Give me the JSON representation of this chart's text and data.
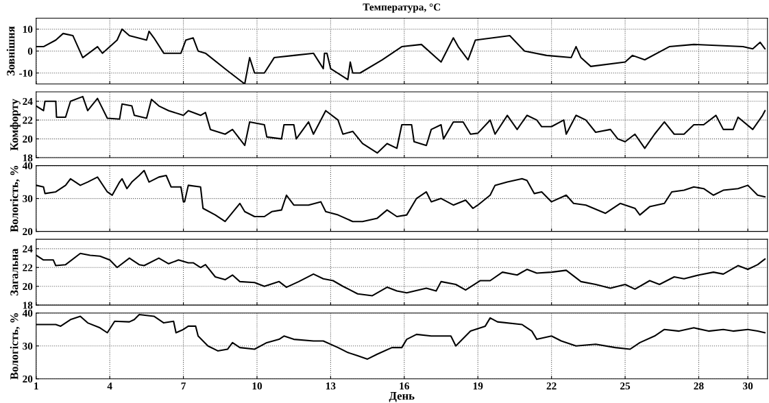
{
  "chart_data": [
    {
      "type": "line",
      "title": "Температура, °C",
      "ylabel": "Зовнішня",
      "xlim": [
        1,
        30.8
      ],
      "xticks": [
        1,
        4,
        7,
        10,
        13,
        16,
        19,
        22,
        25,
        28,
        30
      ],
      "ylim": [
        -15,
        15
      ],
      "yticks": [
        -10,
        0,
        10
      ],
      "grid": true,
      "tick_labels": "y",
      "line_style": "solid",
      "series": [
        {
          "color": "#000000",
          "x": [
            1.0,
            1.3,
            1.8,
            2.1,
            2.5,
            2.9,
            3.5,
            3.7,
            4.3,
            4.5,
            4.8,
            5.5,
            5.6,
            5.8,
            6.2,
            6.9,
            7.1,
            7.4,
            7.6,
            7.9,
            8.8,
            9.5,
            9.7,
            9.9,
            10.3,
            10.7,
            11.5,
            12.3,
            12.7,
            12.75,
            12.85,
            13.0,
            13.7,
            13.8,
            13.9,
            14.2,
            15.1,
            15.9,
            16.7,
            17.5,
            18.0,
            18.2,
            18.6,
            18.9,
            20.3,
            20.9,
            21.8,
            22.8,
            23.0,
            23.2,
            23.6,
            25.0,
            25.3,
            25.8,
            26.8,
            27.8,
            29.8,
            30.2,
            30.5,
            30.7
          ],
          "values": [
            2,
            2,
            5,
            8,
            7,
            -3,
            2,
            -1,
            5,
            10,
            7,
            5,
            9,
            6,
            -1,
            -1,
            5,
            6,
            0,
            -1,
            -9,
            -15,
            -3,
            -10,
            -10,
            -3,
            -2,
            -1,
            -8,
            -1,
            -1,
            -8,
            -13,
            -5,
            -10,
            -10,
            -4,
            2,
            3,
            -5,
            6,
            2,
            -4,
            5,
            7,
            0,
            -2,
            -3,
            2,
            -3,
            -7,
            -5,
            -2,
            -4,
            2,
            3,
            2,
            1,
            4,
            1
          ]
        }
      ]
    },
    {
      "type": "line",
      "ylabel": "Комфорту",
      "xlim": [
        1,
        30.8
      ],
      "xticks": [
        1,
        4,
        7,
        10,
        13,
        16,
        19,
        22,
        25,
        28,
        30
      ],
      "ylim": [
        18,
        25
      ],
      "yticks": [
        18,
        20,
        22,
        24
      ],
      "grid": true,
      "tick_labels": "y",
      "line_style": "solid",
      "series": [
        {
          "color": "#000000",
          "x": [
            1.0,
            1.3,
            1.36,
            1.8,
            1.83,
            2.2,
            2.4,
            2.9,
            3.1,
            3.5,
            3.9,
            4.4,
            4.5,
            4.9,
            5.0,
            5.5,
            5.7,
            6.0,
            6.4,
            7.0,
            7.2,
            7.7,
            7.9,
            8.1,
            8.7,
            9.0,
            9.5,
            9.7,
            10.3,
            10.4,
            11.0,
            11.1,
            11.5,
            11.6,
            12.1,
            12.3,
            12.8,
            13.3,
            13.5,
            13.9,
            14.3,
            14.9,
            15.3,
            15.7,
            15.9,
            16.3,
            16.4,
            16.9,
            17.1,
            17.5,
            17.6,
            18.0,
            18.4,
            18.7,
            19.0,
            19.5,
            19.7,
            20.2,
            20.6,
            21.0,
            21.4,
            21.6,
            22.0,
            22.5,
            22.6,
            23.0,
            23.4,
            23.8,
            24.4,
            24.7,
            25.0,
            25.4,
            25.8,
            26.2,
            26.6,
            27.0,
            27.4,
            27.8,
            28.2,
            28.7,
            29.0,
            29.4,
            29.6,
            30.2,
            30.6,
            30.7
          ],
          "values": [
            23.5,
            23,
            24,
            24,
            22.3,
            22.3,
            24,
            24.5,
            23,
            24.3,
            22.2,
            22.1,
            23.7,
            23.5,
            22.5,
            22.2,
            24.2,
            23.5,
            23,
            22.5,
            23,
            22.5,
            22.8,
            21,
            20.5,
            21,
            19.3,
            21.8,
            21.5,
            20.2,
            20,
            21.5,
            21.5,
            20,
            21.8,
            20.5,
            23,
            22,
            20.5,
            20.8,
            19.5,
            18.5,
            19.5,
            19,
            21.5,
            21.5,
            19.7,
            19.3,
            21,
            21.5,
            20,
            21.8,
            21.8,
            20.5,
            20.6,
            22,
            20.5,
            22.5,
            21,
            22.5,
            22,
            21.3,
            21.3,
            22,
            20.5,
            22.5,
            22,
            20.7,
            21,
            20,
            19.7,
            20.5,
            19,
            20.5,
            21.8,
            20.5,
            20.5,
            21.5,
            21.5,
            22.5,
            21,
            21,
            22.3,
            21,
            22.5,
            23
          ]
        }
      ]
    },
    {
      "type": "line",
      "ylabel": "Вологість, %",
      "xlim": [
        1,
        30.8
      ],
      "xticks": [
        1,
        4,
        7,
        10,
        13,
        16,
        19,
        22,
        25,
        28,
        30
      ],
      "ylim": [
        20,
        40
      ],
      "yticks": [
        20,
        30,
        40
      ],
      "grid": true,
      "tick_labels": "y",
      "line_style": "solid",
      "series": [
        {
          "color": "#000000",
          "x": [
            1.0,
            1.3,
            1.36,
            1.8,
            2.2,
            2.4,
            2.8,
            3.1,
            3.5,
            3.9,
            4.1,
            4.4,
            4.5,
            4.7,
            4.9,
            5.2,
            5.4,
            5.6,
            6.0,
            6.3,
            6.5,
            6.9,
            7.0,
            7.05,
            7.2,
            7.7,
            7.8,
            8.3,
            8.7,
            9.3,
            9.5,
            9.9,
            10.3,
            10.6,
            11.0,
            11.2,
            11.5,
            12.1,
            12.6,
            12.8,
            13.3,
            13.9,
            14.3,
            14.9,
            15.3,
            15.7,
            16.1,
            16.5,
            16.9,
            17.1,
            17.5,
            18.0,
            18.5,
            18.8,
            19.0,
            19.5,
            19.7,
            20.2,
            20.8,
            21.0,
            21.3,
            21.6,
            22.0,
            22.6,
            22.9,
            23.4,
            24.2,
            24.8,
            25.4,
            25.6,
            26.0,
            26.6,
            26.9,
            27.4,
            27.8,
            28.2,
            28.6,
            29.0,
            29.6,
            30.0,
            30.4,
            30.7
          ],
          "values": [
            34,
            33.5,
            31.5,
            32,
            34,
            36,
            34,
            35,
            36.5,
            32,
            31,
            35,
            36,
            33,
            35,
            37,
            38.5,
            35,
            36.5,
            37,
            33.5,
            33.5,
            29,
            29,
            34,
            33.5,
            27,
            25,
            23,
            28.5,
            26,
            24.5,
            24.5,
            26,
            26.5,
            31,
            28,
            28,
            29,
            26,
            25,
            23,
            23,
            24,
            26.5,
            24.5,
            25,
            30,
            32,
            29,
            30,
            28,
            29.5,
            27,
            28,
            31,
            34,
            35,
            36,
            35.5,
            31.5,
            32,
            29,
            31,
            28.5,
            28,
            25.5,
            28.5,
            27,
            25,
            27.5,
            28.5,
            32,
            32.5,
            33.5,
            33,
            31,
            32.5,
            33,
            34,
            31,
            30.5
          ]
        }
      ]
    },
    {
      "type": "line",
      "ylabel": "Загальна",
      "xlim": [
        1,
        30.8
      ],
      "xticks": [
        1,
        4,
        7,
        10,
        13,
        16,
        19,
        22,
        25,
        28,
        30
      ],
      "ylim": [
        18,
        25
      ],
      "yticks": [
        18,
        20,
        22,
        24
      ],
      "grid": true,
      "tick_labels": "y",
      "line_style": "solid",
      "series": [
        {
          "color": "#000000",
          "x": [
            1.0,
            1.3,
            1.7,
            1.8,
            2.2,
            2.8,
            3.2,
            3.6,
            4.0,
            4.3,
            4.8,
            5.2,
            5.4,
            6.0,
            6.4,
            6.8,
            7.2,
            7.4,
            7.7,
            7.9,
            8.3,
            8.7,
            9.0,
            9.3,
            9.9,
            10.3,
            10.9,
            11.2,
            11.7,
            12.3,
            12.7,
            13.1,
            13.5,
            14.1,
            14.7,
            15.3,
            15.7,
            16.1,
            16.9,
            17.3,
            17.5,
            18.1,
            18.5,
            19.1,
            19.5,
            20.0,
            20.6,
            21.0,
            21.4,
            22.0,
            22.6,
            23.2,
            23.8,
            24.4,
            25.0,
            25.4,
            26.0,
            26.4,
            27.0,
            27.4,
            28.0,
            28.6,
            29.0,
            29.6,
            30.0,
            30.4,
            30.7
          ],
          "values": [
            23.3,
            22.8,
            22.8,
            22.2,
            22.3,
            23.5,
            23.3,
            23.2,
            22.8,
            22,
            23,
            22.3,
            22.2,
            23,
            22.4,
            22.8,
            22.5,
            22.5,
            22,
            22.3,
            21,
            20.7,
            21.2,
            20.5,
            20.4,
            20,
            20.5,
            19.9,
            20.5,
            21.3,
            20.8,
            20.6,
            20,
            19.2,
            19,
            19.9,
            19.5,
            19.3,
            19.8,
            19.5,
            20.5,
            20.2,
            19.6,
            20.6,
            20.6,
            21.5,
            21.2,
            21.8,
            21.4,
            21.5,
            21.7,
            20.5,
            20.2,
            19.8,
            20.2,
            19.7,
            20.6,
            20.2,
            21,
            20.8,
            21.2,
            21.5,
            21.3,
            22.2,
            21.8,
            22.3,
            22.9
          ]
        }
      ]
    },
    {
      "type": "line",
      "ylabel": "Вологість, %",
      "xlabel": "День",
      "xlim": [
        1,
        30.8
      ],
      "xticks": [
        1,
        4,
        7,
        10,
        13,
        16,
        19,
        22,
        25,
        28,
        30
      ],
      "ylim": [
        20,
        40
      ],
      "yticks": [
        20,
        30,
        40
      ],
      "grid": true,
      "line_style": "solid",
      "series": [
        {
          "color": "#000000",
          "x": [
            1.0,
            1.8,
            2.0,
            2.4,
            2.8,
            3.1,
            3.6,
            3.9,
            4.2,
            4.8,
            5.0,
            5.2,
            5.8,
            6.2,
            6.6,
            6.7,
            7.0,
            7.2,
            7.5,
            7.6,
            8.0,
            8.4,
            8.8,
            9.0,
            9.3,
            9.9,
            10.4,
            10.9,
            11.1,
            11.5,
            12.3,
            12.7,
            13.3,
            13.7,
            14.1,
            14.5,
            14.9,
            15.5,
            15.9,
            16.1,
            16.5,
            17.1,
            17.9,
            18.1,
            18.7,
            19.3,
            19.5,
            19.8,
            20.8,
            21.2,
            21.4,
            22.0,
            22.4,
            23.0,
            23.8,
            24.6,
            25.2,
            25.6,
            26.2,
            26.6,
            27.2,
            27.8,
            28.4,
            29.0,
            29.4,
            30.0,
            30.4,
            30.7
          ],
          "values": [
            36.5,
            36.5,
            36,
            38,
            39,
            37,
            35.5,
            34,
            37.5,
            37.3,
            38,
            39.5,
            39,
            37,
            37.5,
            34,
            35,
            36,
            36,
            33,
            30,
            28.5,
            29,
            31,
            29.5,
            29,
            31,
            32,
            33,
            32,
            31.5,
            31.5,
            29.5,
            28,
            27,
            26,
            27.5,
            29.5,
            29.5,
            32,
            33.5,
            33,
            33,
            30,
            34.5,
            36,
            38.5,
            37.3,
            36.5,
            34.5,
            32,
            33,
            31.5,
            30,
            30.5,
            29.5,
            29,
            31,
            33,
            35,
            34.5,
            35.5,
            34.5,
            35,
            34.5,
            35,
            34.5,
            34
          ]
        }
      ]
    }
  ]
}
